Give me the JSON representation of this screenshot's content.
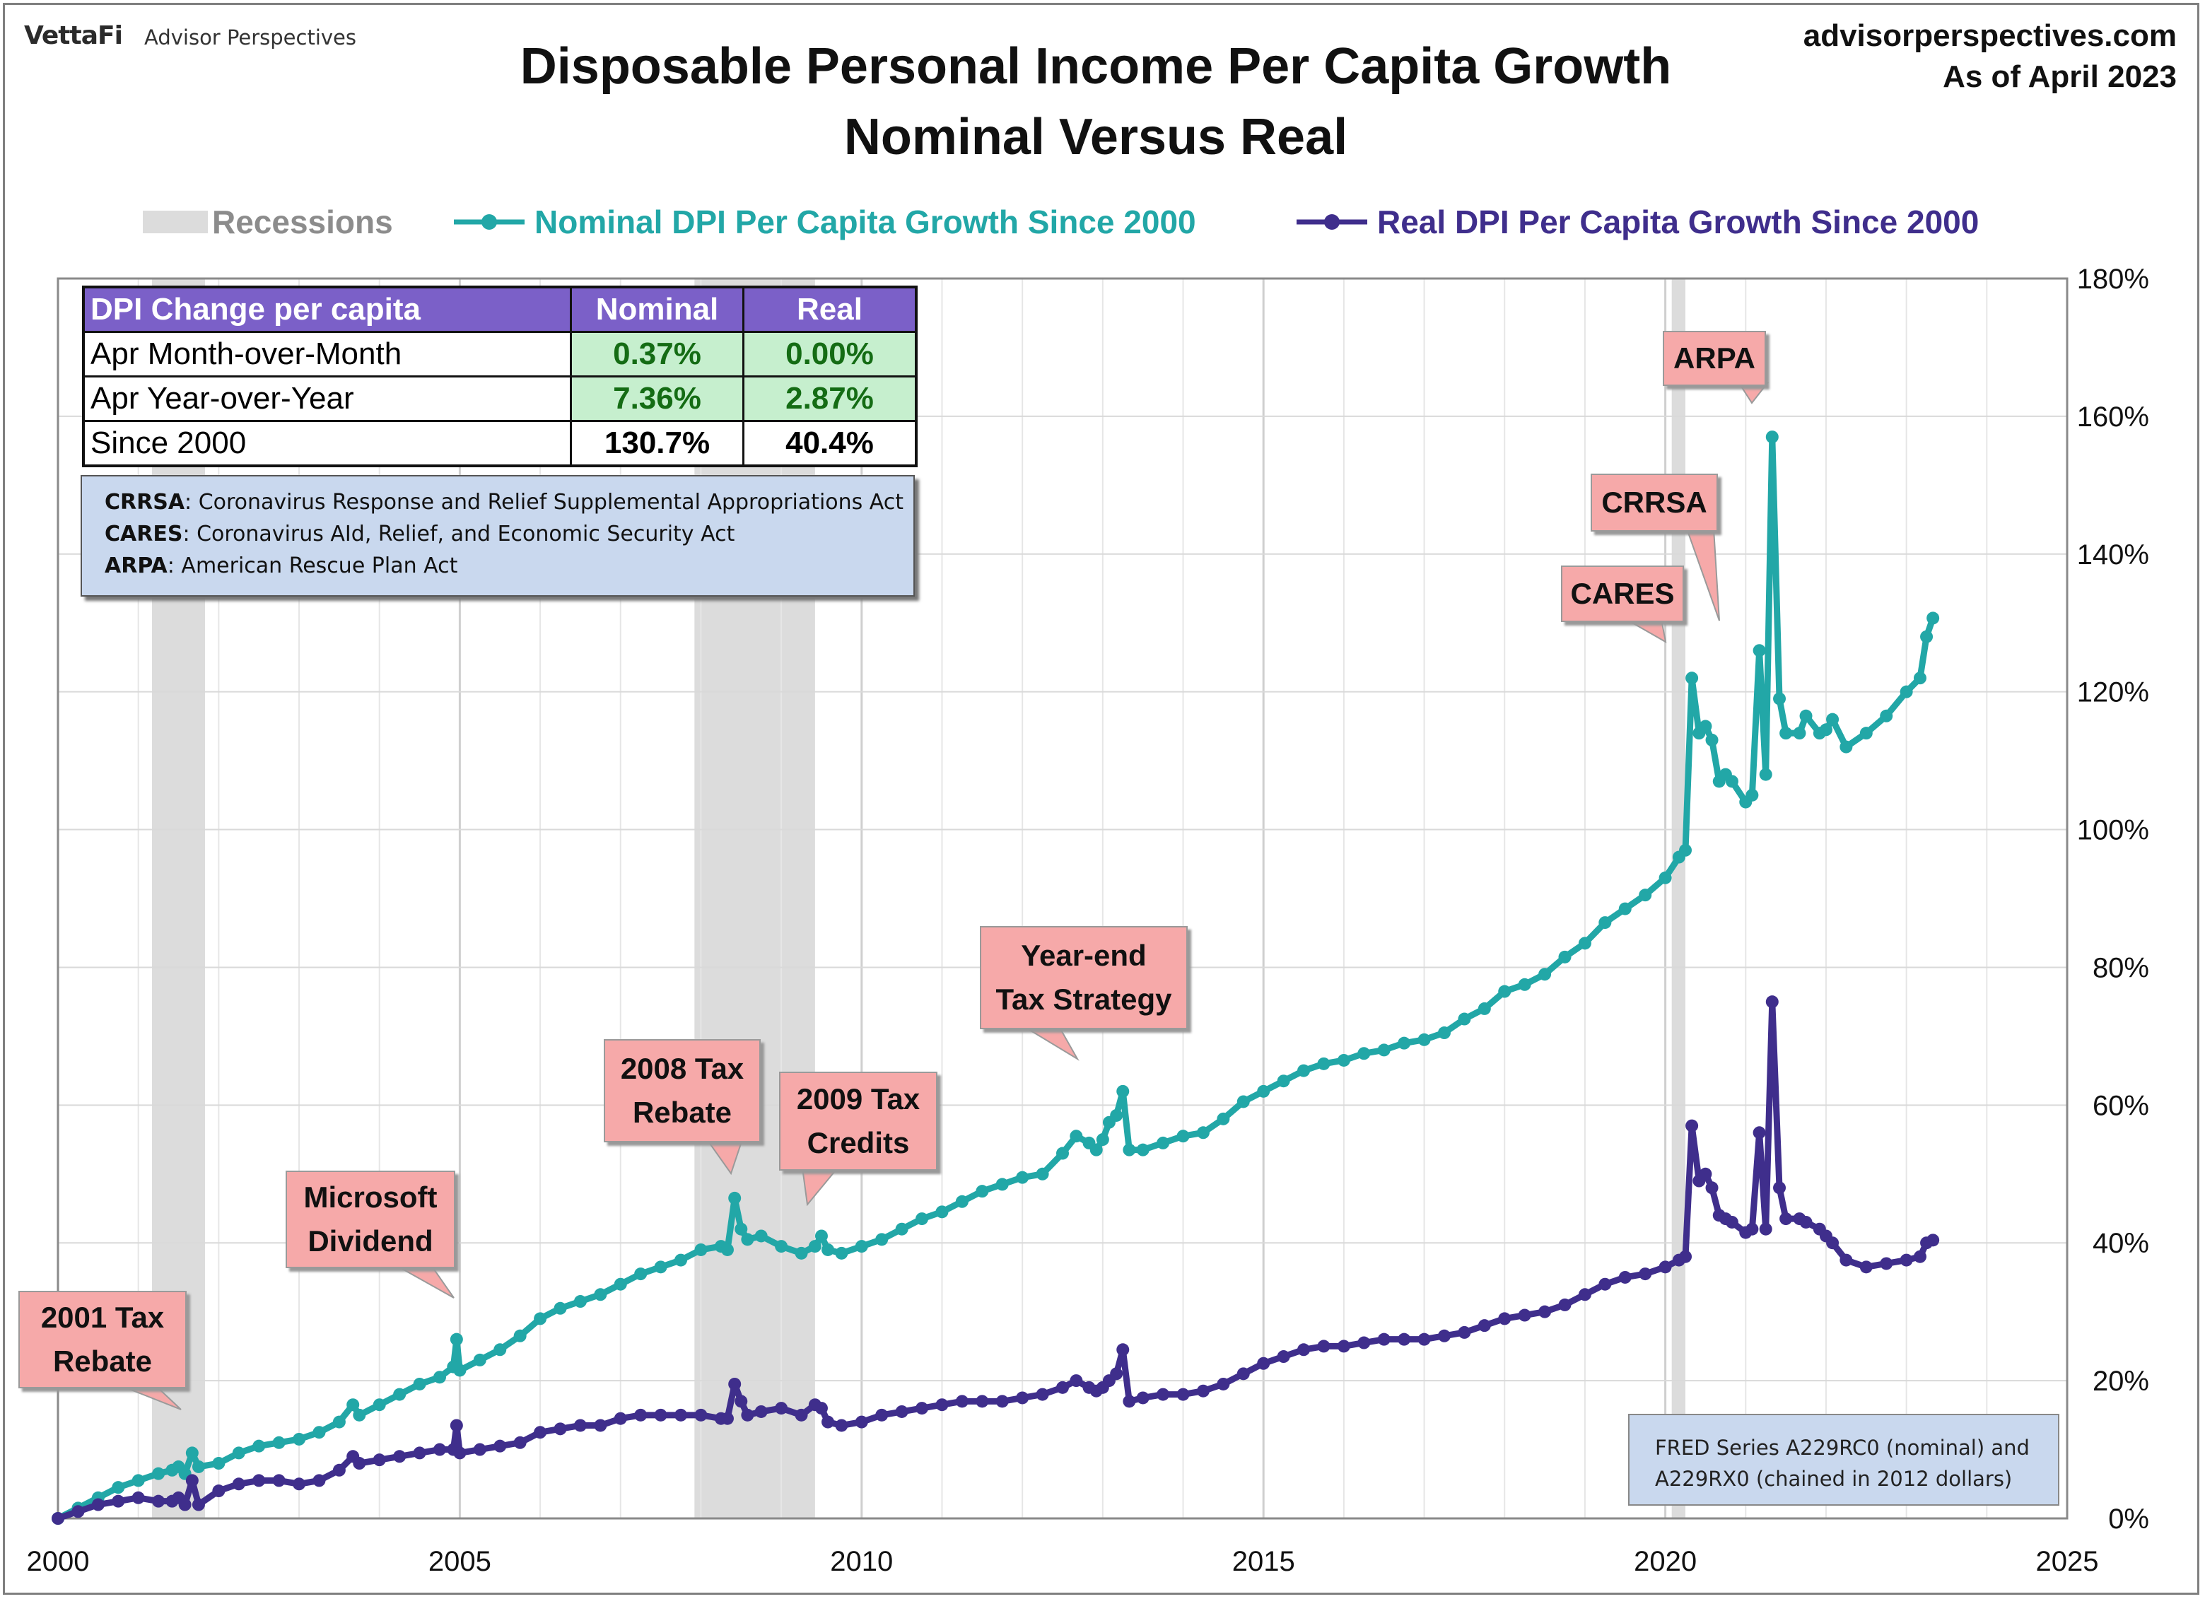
{
  "brand": {
    "name": "VettaFi",
    "sub": "Advisor Perspectives"
  },
  "site": {
    "url": "advisorperspectives.com",
    "date": "As of April 2023"
  },
  "title": {
    "line1": "Disposable Personal Income Per Capita Growth",
    "line2": "Nominal Versus Real"
  },
  "legend": {
    "recessions": "Recessions",
    "nominal": "Nominal DPI Per Capita Growth Since 2000",
    "real": "Real DPI Per Capita Growth Since 2000"
  },
  "colors": {
    "nominal": "#22a7a7",
    "real": "#3f2e8c",
    "recession": "#dcdcdc",
    "callout": "#f6a9a9",
    "table_header": "#7b60c8",
    "green_cell": "#c6efce"
  },
  "table": {
    "headers": [
      "DPI Change per capita",
      "Nominal",
      "Real"
    ],
    "rows": [
      {
        "label": "Apr Month-over-Month",
        "nominal": "0.37%",
        "real": "0.00%"
      },
      {
        "label": "Apr Year-over-Year",
        "nominal": "7.36%",
        "real": "2.87%"
      },
      {
        "label": "Since 2000",
        "nominal": "130.7%",
        "real": "40.4%"
      }
    ]
  },
  "glossary": [
    {
      "abbr": "CRRSA",
      "text": ": Coronavirus Response and Relief Supplemental Appropriations Act"
    },
    {
      "abbr": "CARES",
      "text": ": Coronavirus AId, Relief, and Economic Security Act"
    },
    {
      "abbr": "ARPA",
      "text": ": American Rescue Plan Act"
    }
  ],
  "source_note": {
    "line1": "FRED Series A229RC0 (nominal) and",
    "line2": "A229RX0 (chained in 2012 dollars)"
  },
  "callouts": [
    {
      "id": "tax2001",
      "lines": [
        "2001 Tax",
        "Rebate"
      ]
    },
    {
      "id": "microsoft",
      "lines": [
        "Microsoft",
        "Dividend"
      ]
    },
    {
      "id": "tax2008",
      "lines": [
        "2008 Tax",
        "Rebate"
      ]
    },
    {
      "id": "credits2009",
      "lines": [
        "2009 Tax",
        "Credits"
      ]
    },
    {
      "id": "yearend",
      "lines": [
        "Year-end",
        "Tax Strategy"
      ]
    },
    {
      "id": "cares",
      "lines": [
        "CARES"
      ]
    },
    {
      "id": "crrsa",
      "lines": [
        "CRRSA"
      ]
    },
    {
      "id": "arpa",
      "lines": [
        "ARPA"
      ]
    }
  ],
  "chart_data": {
    "type": "line",
    "title": "Disposable Personal Income Per Capita Growth Nominal Versus Real",
    "xlim": [
      2000,
      2025
    ],
    "ylim": [
      0,
      180
    ],
    "x_ticks": [
      "2000",
      "2005",
      "2010",
      "2015",
      "2020",
      "2025"
    ],
    "y_ticks": [
      "0%",
      "20%",
      "40%",
      "60%",
      "80%",
      "100%",
      "120%",
      "140%",
      "160%",
      "180%"
    ],
    "recessions": [
      [
        2001.17,
        2001.83
      ],
      [
        2007.92,
        2009.42
      ],
      [
        2020.08,
        2020.25
      ]
    ],
    "series": [
      {
        "name": "Nominal DPI Per Capita Growth Since 2000",
        "points": [
          [
            2000.0,
            0
          ],
          [
            2000.25,
            1.5
          ],
          [
            2000.5,
            3
          ],
          [
            2000.75,
            4.5
          ],
          [
            2001.0,
            5.5
          ],
          [
            2001.25,
            6.5
          ],
          [
            2001.42,
            7
          ],
          [
            2001.5,
            7.5
          ],
          [
            2001.58,
            6.5
          ],
          [
            2001.67,
            9.5
          ],
          [
            2001.75,
            7.5
          ],
          [
            2002.0,
            8
          ],
          [
            2002.25,
            9.5
          ],
          [
            2002.5,
            10.5
          ],
          [
            2002.75,
            11
          ],
          [
            2003.0,
            11.5
          ],
          [
            2003.25,
            12.5
          ],
          [
            2003.5,
            14
          ],
          [
            2003.67,
            16.5
          ],
          [
            2003.75,
            15
          ],
          [
            2004.0,
            16.5
          ],
          [
            2004.25,
            18
          ],
          [
            2004.5,
            19.5
          ],
          [
            2004.75,
            20.5
          ],
          [
            2004.92,
            22
          ],
          [
            2004.96,
            26
          ],
          [
            2005.0,
            21.5
          ],
          [
            2005.25,
            23
          ],
          [
            2005.5,
            24.5
          ],
          [
            2005.75,
            26.5
          ],
          [
            2006.0,
            29
          ],
          [
            2006.25,
            30.5
          ],
          [
            2006.5,
            31.5
          ],
          [
            2006.75,
            32.5
          ],
          [
            2007.0,
            34
          ],
          [
            2007.25,
            35.5
          ],
          [
            2007.5,
            36.5
          ],
          [
            2007.75,
            37.5
          ],
          [
            2008.0,
            39
          ],
          [
            2008.25,
            39.5
          ],
          [
            2008.33,
            39
          ],
          [
            2008.42,
            46.5
          ],
          [
            2008.5,
            42
          ],
          [
            2008.58,
            40.5
          ],
          [
            2008.75,
            41
          ],
          [
            2009.0,
            39.5
          ],
          [
            2009.25,
            38.5
          ],
          [
            2009.42,
            39.5
          ],
          [
            2009.5,
            41
          ],
          [
            2009.58,
            39
          ],
          [
            2009.75,
            38.5
          ],
          [
            2010.0,
            39.5
          ],
          [
            2010.25,
            40.5
          ],
          [
            2010.5,
            42
          ],
          [
            2010.75,
            43.5
          ],
          [
            2011.0,
            44.5
          ],
          [
            2011.25,
            46
          ],
          [
            2011.5,
            47.5
          ],
          [
            2011.75,
            48.5
          ],
          [
            2012.0,
            49.5
          ],
          [
            2012.25,
            50
          ],
          [
            2012.5,
            53
          ],
          [
            2012.67,
            55.5
          ],
          [
            2012.83,
            54.5
          ],
          [
            2012.92,
            53.5
          ],
          [
            2013.0,
            55
          ],
          [
            2013.08,
            57.5
          ],
          [
            2013.17,
            58.5
          ],
          [
            2013.25,
            62
          ],
          [
            2013.33,
            53.5
          ],
          [
            2013.5,
            53.5
          ],
          [
            2013.75,
            54.5
          ],
          [
            2014.0,
            55.5
          ],
          [
            2014.25,
            56
          ],
          [
            2014.5,
            58
          ],
          [
            2014.75,
            60.5
          ],
          [
            2015.0,
            62
          ],
          [
            2015.25,
            63.5
          ],
          [
            2015.5,
            65
          ],
          [
            2015.75,
            66
          ],
          [
            2016.0,
            66.5
          ],
          [
            2016.25,
            67.5
          ],
          [
            2016.5,
            68
          ],
          [
            2016.75,
            69
          ],
          [
            2017.0,
            69.5
          ],
          [
            2017.25,
            70.5
          ],
          [
            2017.5,
            72.5
          ],
          [
            2017.75,
            74
          ],
          [
            2018.0,
            76.5
          ],
          [
            2018.25,
            77.5
          ],
          [
            2018.5,
            79
          ],
          [
            2018.75,
            81.5
          ],
          [
            2019.0,
            83.5
          ],
          [
            2019.25,
            86.5
          ],
          [
            2019.5,
            88.5
          ],
          [
            2019.75,
            90.5
          ],
          [
            2020.0,
            93
          ],
          [
            2020.17,
            96
          ],
          [
            2020.25,
            97
          ],
          [
            2020.33,
            122
          ],
          [
            2020.42,
            114
          ],
          [
            2020.5,
            115
          ],
          [
            2020.58,
            113
          ],
          [
            2020.67,
            107
          ],
          [
            2020.75,
            108
          ],
          [
            2020.83,
            107
          ],
          [
            2021.0,
            104
          ],
          [
            2021.08,
            105
          ],
          [
            2021.17,
            126
          ],
          [
            2021.25,
            108
          ],
          [
            2021.33,
            157
          ],
          [
            2021.42,
            119
          ],
          [
            2021.5,
            114
          ],
          [
            2021.67,
            114
          ],
          [
            2021.75,
            116.5
          ],
          [
            2021.92,
            114
          ],
          [
            2022.0,
            114.5
          ],
          [
            2022.08,
            116
          ],
          [
            2022.25,
            112
          ],
          [
            2022.5,
            114
          ],
          [
            2022.75,
            116.5
          ],
          [
            2023.0,
            120
          ],
          [
            2023.17,
            122
          ],
          [
            2023.25,
            128
          ],
          [
            2023.33,
            130.7
          ]
        ]
      },
      {
        "name": "Real DPI Per Capita Growth Since 2000",
        "points": [
          [
            2000.0,
            0
          ],
          [
            2000.25,
            1
          ],
          [
            2000.5,
            2
          ],
          [
            2000.75,
            2.5
          ],
          [
            2001.0,
            3
          ],
          [
            2001.25,
            2.5
          ],
          [
            2001.42,
            2.5
          ],
          [
            2001.5,
            3
          ],
          [
            2001.58,
            2
          ],
          [
            2001.67,
            5.5
          ],
          [
            2001.75,
            2
          ],
          [
            2002.0,
            4
          ],
          [
            2002.25,
            5
          ],
          [
            2002.5,
            5.5
          ],
          [
            2002.75,
            5.5
          ],
          [
            2003.0,
            5
          ],
          [
            2003.25,
            5.5
          ],
          [
            2003.5,
            7
          ],
          [
            2003.67,
            9
          ],
          [
            2003.75,
            8
          ],
          [
            2004.0,
            8.5
          ],
          [
            2004.25,
            9
          ],
          [
            2004.5,
            9.5
          ],
          [
            2004.75,
            10
          ],
          [
            2004.92,
            10
          ],
          [
            2004.96,
            13.5
          ],
          [
            2005.0,
            9.5
          ],
          [
            2005.25,
            10
          ],
          [
            2005.5,
            10.5
          ],
          [
            2005.75,
            11
          ],
          [
            2006.0,
            12.5
          ],
          [
            2006.25,
            13
          ],
          [
            2006.5,
            13.5
          ],
          [
            2006.75,
            13.5
          ],
          [
            2007.0,
            14.5
          ],
          [
            2007.25,
            15
          ],
          [
            2007.5,
            15
          ],
          [
            2007.75,
            15
          ],
          [
            2008.0,
            15
          ],
          [
            2008.25,
            14.5
          ],
          [
            2008.33,
            14.5
          ],
          [
            2008.42,
            19.5
          ],
          [
            2008.5,
            17
          ],
          [
            2008.58,
            15
          ],
          [
            2008.75,
            15.5
          ],
          [
            2009.0,
            16
          ],
          [
            2009.25,
            15
          ],
          [
            2009.42,
            16.5
          ],
          [
            2009.5,
            16
          ],
          [
            2009.58,
            14
          ],
          [
            2009.75,
            13.5
          ],
          [
            2010.0,
            14
          ],
          [
            2010.25,
            15
          ],
          [
            2010.5,
            15.5
          ],
          [
            2010.75,
            16
          ],
          [
            2011.0,
            16.5
          ],
          [
            2011.25,
            17
          ],
          [
            2011.5,
            17
          ],
          [
            2011.75,
            17
          ],
          [
            2012.0,
            17.5
          ],
          [
            2012.25,
            18
          ],
          [
            2012.5,
            19
          ],
          [
            2012.67,
            20
          ],
          [
            2012.83,
            19
          ],
          [
            2012.92,
            18.5
          ],
          [
            2013.0,
            19
          ],
          [
            2013.08,
            20
          ],
          [
            2013.17,
            21
          ],
          [
            2013.25,
            24.5
          ],
          [
            2013.33,
            17
          ],
          [
            2013.5,
            17.5
          ],
          [
            2013.75,
            18
          ],
          [
            2014.0,
            18
          ],
          [
            2014.25,
            18.5
          ],
          [
            2014.5,
            19.5
          ],
          [
            2014.75,
            21
          ],
          [
            2015.0,
            22.5
          ],
          [
            2015.25,
            23.5
          ],
          [
            2015.5,
            24.5
          ],
          [
            2015.75,
            25
          ],
          [
            2016.0,
            25
          ],
          [
            2016.25,
            25.5
          ],
          [
            2016.5,
            26
          ],
          [
            2016.75,
            26
          ],
          [
            2017.0,
            26
          ],
          [
            2017.25,
            26.5
          ],
          [
            2017.5,
            27
          ],
          [
            2017.75,
            28
          ],
          [
            2018.0,
            29
          ],
          [
            2018.25,
            29.5
          ],
          [
            2018.5,
            30
          ],
          [
            2018.75,
            31
          ],
          [
            2019.0,
            32.5
          ],
          [
            2019.25,
            34
          ],
          [
            2019.5,
            35
          ],
          [
            2019.75,
            35.5
          ],
          [
            2020.0,
            36.5
          ],
          [
            2020.17,
            37.5
          ],
          [
            2020.25,
            38
          ],
          [
            2020.33,
            57
          ],
          [
            2020.42,
            49
          ],
          [
            2020.5,
            50
          ],
          [
            2020.58,
            48
          ],
          [
            2020.67,
            44
          ],
          [
            2020.75,
            43.5
          ],
          [
            2020.83,
            43
          ],
          [
            2021.0,
            41.5
          ],
          [
            2021.08,
            42
          ],
          [
            2021.17,
            56
          ],
          [
            2021.25,
            42
          ],
          [
            2021.33,
            75
          ],
          [
            2021.42,
            48
          ],
          [
            2021.5,
            43.5
          ],
          [
            2021.67,
            43.5
          ],
          [
            2021.75,
            43
          ],
          [
            2021.92,
            42
          ],
          [
            2022.0,
            41
          ],
          [
            2022.08,
            40
          ],
          [
            2022.25,
            37.5
          ],
          [
            2022.5,
            36.5
          ],
          [
            2022.75,
            37
          ],
          [
            2023.0,
            37.5
          ],
          [
            2023.17,
            38
          ],
          [
            2023.25,
            40
          ],
          [
            2023.33,
            40.4
          ]
        ]
      }
    ]
  }
}
